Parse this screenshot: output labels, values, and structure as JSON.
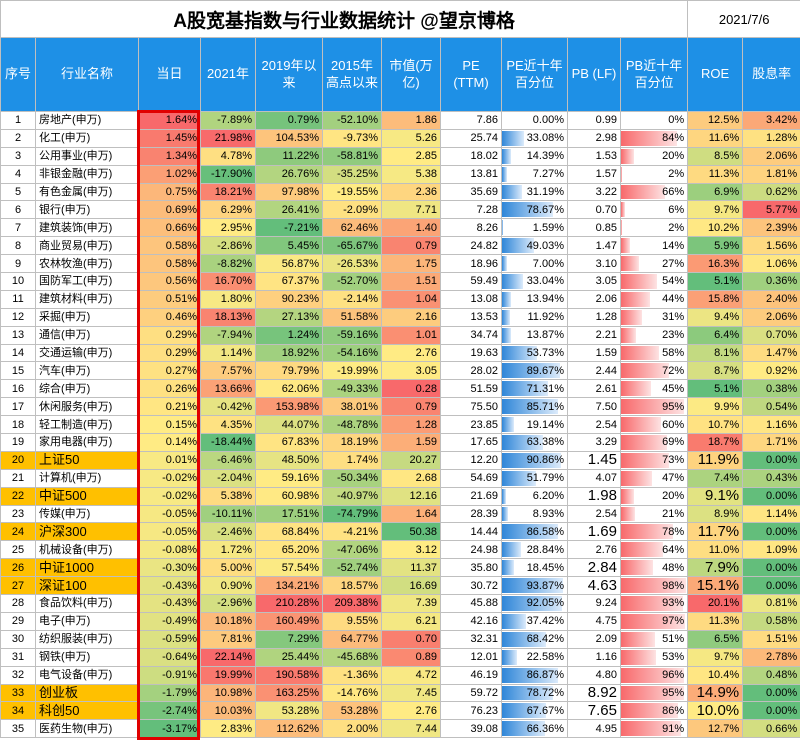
{
  "title": "A股宽基指数与行业数据统计 @望京博格",
  "date": "2021/7/6",
  "headers": [
    "序号",
    "行业名称",
    "当日",
    "2021年",
    "2019年以来",
    "2015年高点以来",
    "市值(万亿)",
    "PE (TTM)",
    "PE近十年百分位",
    "PB (LF)",
    "PB近十年百分位",
    "ROE",
    "股息率"
  ],
  "rows": [
    [
      "1",
      "房地产(申万)",
      "1.64%",
      "-7.89%",
      "0.79%",
      "-52.10%",
      "1.86",
      "7.86",
      "0.00%",
      "0.99",
      "0%",
      "12.5%",
      "3.42%"
    ],
    [
      "2",
      "化工(申万)",
      "1.45%",
      "21.98%",
      "104.53%",
      "-9.73%",
      "5.26",
      "25.74",
      "33.08%",
      "2.98",
      "84%",
      "11.6%",
      "1.28%"
    ],
    [
      "3",
      "公用事业(申万)",
      "1.34%",
      "4.78%",
      "11.22%",
      "-58.81%",
      "2.85",
      "18.02",
      "14.39%",
      "1.53",
      "20%",
      "8.5%",
      "2.06%"
    ],
    [
      "4",
      "非银金融(申万)",
      "1.02%",
      "-17.90%",
      "26.76%",
      "-35.25%",
      "5.38",
      "13.81",
      "7.27%",
      "1.57",
      "2%",
      "11.3%",
      "1.81%"
    ],
    [
      "5",
      "有色金属(申万)",
      "0.75%",
      "18.21%",
      "97.98%",
      "-19.55%",
      "2.36",
      "35.69",
      "31.19%",
      "3.22",
      "66%",
      "6.9%",
      "0.62%"
    ],
    [
      "6",
      "银行(申万)",
      "0.69%",
      "6.29%",
      "26.41%",
      "-2.09%",
      "7.71",
      "7.28",
      "78.67%",
      "0.70",
      "6%",
      "9.7%",
      "5.77%"
    ],
    [
      "7",
      "建筑装饰(申万)",
      "0.66%",
      "2.95%",
      "-7.21%",
      "62.46%",
      "1.40",
      "8.26",
      "1.59%",
      "0.85",
      "2%",
      "10.2%",
      "2.39%"
    ],
    [
      "8",
      "商业贸易(申万)",
      "0.58%",
      "-2.86%",
      "5.45%",
      "-65.67%",
      "0.79",
      "24.82",
      "49.03%",
      "1.47",
      "14%",
      "5.9%",
      "1.56%"
    ],
    [
      "9",
      "农林牧渔(申万)",
      "0.58%",
      "-8.82%",
      "56.87%",
      "-26.53%",
      "1.75",
      "18.96",
      "7.00%",
      "3.10",
      "27%",
      "16.3%",
      "1.06%"
    ],
    [
      "10",
      "国防军工(申万)",
      "0.56%",
      "16.70%",
      "67.37%",
      "-52.70%",
      "1.51",
      "59.49",
      "33.04%",
      "3.05",
      "54%",
      "5.1%",
      "0.36%"
    ],
    [
      "11",
      "建筑材料(申万)",
      "0.51%",
      "1.80%",
      "90.23%",
      "-2.14%",
      "1.04",
      "13.08",
      "13.94%",
      "2.06",
      "44%",
      "15.8%",
      "2.40%"
    ],
    [
      "12",
      "采掘(申万)",
      "0.46%",
      "18.13%",
      "27.13%",
      "51.58%",
      "2.16",
      "13.53",
      "11.92%",
      "1.28",
      "31%",
      "9.4%",
      "2.06%"
    ],
    [
      "13",
      "通信(申万)",
      "0.29%",
      "-7.94%",
      "1.24%",
      "-59.16%",
      "1.01",
      "34.74",
      "13.87%",
      "2.21",
      "23%",
      "6.4%",
      "0.70%"
    ],
    [
      "14",
      "交通运输(申万)",
      "0.29%",
      "1.14%",
      "18.92%",
      "-54.16%",
      "2.76",
      "19.63",
      "53.73%",
      "1.59",
      "58%",
      "8.1%",
      "1.47%"
    ],
    [
      "15",
      "汽车(申万)",
      "0.27%",
      "7.57%",
      "79.79%",
      "-19.99%",
      "3.05",
      "28.02",
      "89.67%",
      "2.44",
      "72%",
      "8.7%",
      "0.92%"
    ],
    [
      "16",
      "综合(申万)",
      "0.26%",
      "13.66%",
      "62.06%",
      "-49.33%",
      "0.28",
      "51.59",
      "71.31%",
      "2.61",
      "45%",
      "5.1%",
      "0.38%"
    ],
    [
      "17",
      "休闲服务(申万)",
      "0.21%",
      "-0.42%",
      "153.98%",
      "38.01%",
      "0.79",
      "75.50",
      "85.71%",
      "7.50",
      "95%",
      "9.9%",
      "0.54%"
    ],
    [
      "18",
      "轻工制造(申万)",
      "0.15%",
      "4.35%",
      "44.07%",
      "-48.78%",
      "1.28",
      "23.85",
      "19.14%",
      "2.54",
      "60%",
      "10.7%",
      "1.16%"
    ],
    [
      "19",
      "家用电器(申万)",
      "0.14%",
      "-18.44%",
      "67.83%",
      "18.19%",
      "1.59",
      "17.65",
      "63.38%",
      "3.29",
      "69%",
      "18.7%",
      "1.71%"
    ],
    [
      "20",
      "上证50",
      "0.01%",
      "-6.46%",
      "48.50%",
      "1.74%",
      "20.27",
      "12.20",
      "90.86%",
      "1.45",
      "73%",
      "11.9%",
      "0.00%"
    ],
    [
      "21",
      "计算机(申万)",
      "-0.02%",
      "-2.04%",
      "59.16%",
      "-50.34%",
      "2.68",
      "54.69",
      "51.79%",
      "4.07",
      "47%",
      "7.4%",
      "0.43%"
    ],
    [
      "22",
      "中证500",
      "-0.02%",
      "5.38%",
      "60.98%",
      "-40.97%",
      "12.16",
      "21.69",
      "6.20%",
      "1.98",
      "20%",
      "9.1%",
      "0.00%"
    ],
    [
      "23",
      "传媒(申万)",
      "-0.05%",
      "-10.11%",
      "17.51%",
      "-74.79%",
      "1.64",
      "28.39",
      "8.93%",
      "2.54",
      "21%",
      "8.9%",
      "1.14%"
    ],
    [
      "24",
      "沪深300",
      "-0.05%",
      "-2.46%",
      "68.84%",
      "-4.21%",
      "50.38",
      "14.44",
      "86.58%",
      "1.69",
      "78%",
      "11.7%",
      "0.00%"
    ],
    [
      "25",
      "机械设备(申万)",
      "-0.08%",
      "1.72%",
      "65.20%",
      "-47.06%",
      "3.12",
      "24.98",
      "28.84%",
      "2.76",
      "64%",
      "11.0%",
      "1.09%"
    ],
    [
      "26",
      "中证1000",
      "-0.30%",
      "5.00%",
      "57.54%",
      "-52.74%",
      "11.37",
      "35.80",
      "18.45%",
      "2.84",
      "48%",
      "7.9%",
      "0.00%"
    ],
    [
      "27",
      "深证100",
      "-0.43%",
      "0.90%",
      "134.21%",
      "18.57%",
      "16.69",
      "30.72",
      "93.87%",
      "4.63",
      "98%",
      "15.1%",
      "0.00%"
    ],
    [
      "28",
      "食品饮料(申万)",
      "-0.43%",
      "-2.96%",
      "210.28%",
      "209.38%",
      "7.39",
      "45.88",
      "92.05%",
      "9.24",
      "93%",
      "20.1%",
      "0.81%"
    ],
    [
      "29",
      "电子(申万)",
      "-0.49%",
      "10.18%",
      "160.49%",
      "9.55%",
      "6.21",
      "42.16",
      "37.42%",
      "4.75",
      "97%",
      "11.3%",
      "0.58%"
    ],
    [
      "30",
      "纺织服装(申万)",
      "-0.59%",
      "7.81%",
      "7.29%",
      "64.77%",
      "0.70",
      "32.31",
      "68.42%",
      "2.09",
      "51%",
      "6.5%",
      "1.51%"
    ],
    [
      "31",
      "钢铁(申万)",
      "-0.64%",
      "22.14%",
      "25.44%",
      "-45.68%",
      "0.89",
      "12.01",
      "22.58%",
      "1.16",
      "53%",
      "9.7%",
      "2.78%"
    ],
    [
      "32",
      "电气设备(申万)",
      "-0.91%",
      "19.99%",
      "190.58%",
      "-1.36%",
      "4.72",
      "46.19",
      "86.87%",
      "4.80",
      "96%",
      "10.4%",
      "0.48%"
    ],
    [
      "33",
      "创业板",
      "-1.79%",
      "10.98%",
      "163.25%",
      "-14.76%",
      "7.45",
      "59.72",
      "78.72%",
      "8.92",
      "95%",
      "14.9%",
      "0.00%"
    ],
    [
      "34",
      "科创50",
      "-2.74%",
      "10.03%",
      "53.28%",
      "53.28%",
      "2.76",
      "76.23",
      "67.67%",
      "7.65",
      "86%",
      "10.0%",
      "0.00%"
    ],
    [
      "35",
      "医药生物(申万)",
      "-3.17%",
      "2.83%",
      "112.62%",
      "2.00%",
      "7.44",
      "39.08",
      "66.36%",
      "4.95",
      "91%",
      "12.7%",
      "0.66%"
    ]
  ],
  "index_rows": [
    "20",
    "22",
    "24",
    "26",
    "27",
    "33",
    "34"
  ],
  "colors": {
    "header_bg": "#1e90e6",
    "index_bg": "#ffc000",
    "highlight": "#e00000",
    "pe_bar": "#2f86d8",
    "pb_bar": "#f8696b"
  }
}
